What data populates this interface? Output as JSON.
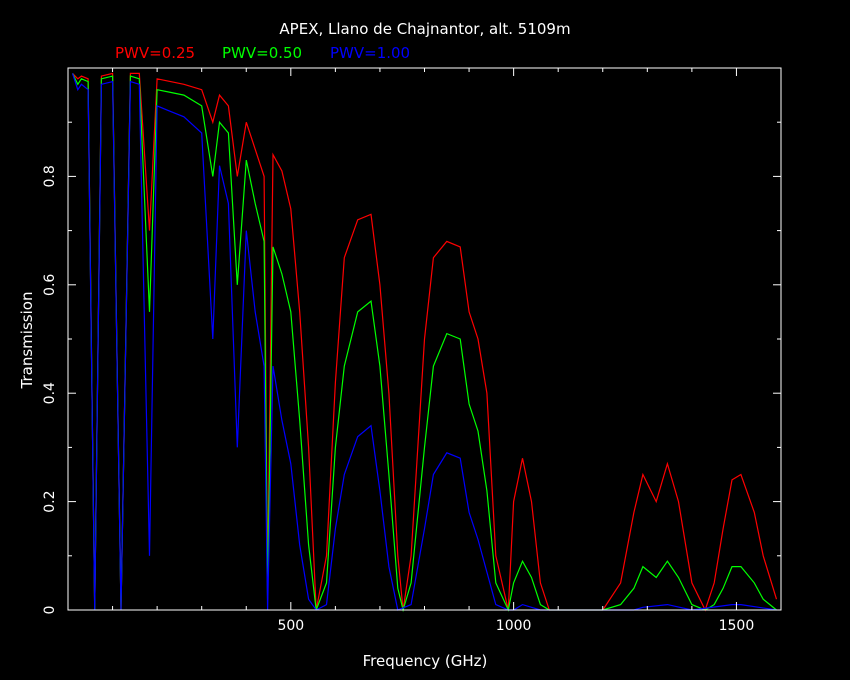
{
  "chart_data": {
    "type": "line",
    "title": "APEX, Llano de Chajnantor, alt. 5109m",
    "xlabel": "Frequency (GHz)",
    "ylabel": "Transmission",
    "xlim": [
      0,
      1600
    ],
    "ylim": [
      0,
      1
    ],
    "x_ticks": [
      {
        "value": 500,
        "label": "500"
      },
      {
        "value": 1000,
        "label": "1000"
      },
      {
        "value": 1500,
        "label": "1500"
      }
    ],
    "y_ticks": [
      {
        "value": 0,
        "label": "0"
      },
      {
        "value": 0.2,
        "label": "0.2"
      },
      {
        "value": 0.4,
        "label": "0.4"
      },
      {
        "value": 0.6,
        "label": "0.6"
      },
      {
        "value": 0.8,
        "label": "0.8"
      }
    ],
    "grid": false,
    "legend_position": "top-left",
    "series": [
      {
        "name": "PWV=0.25",
        "color": "#ff0000",
        "values": [
          [
            10,
            0.99
          ],
          [
            22,
            0.98
          ],
          [
            30,
            0.985
          ],
          [
            45,
            0.98
          ],
          [
            60,
            0.0
          ],
          [
            75,
            0.985
          ],
          [
            100,
            0.99
          ],
          [
            119,
            0.0
          ],
          [
            140,
            0.99
          ],
          [
            160,
            0.99
          ],
          [
            183,
            0.7
          ],
          [
            200,
            0.98
          ],
          [
            230,
            0.975
          ],
          [
            260,
            0.97
          ],
          [
            300,
            0.96
          ],
          [
            325,
            0.9
          ],
          [
            340,
            0.95
          ],
          [
            360,
            0.93
          ],
          [
            380,
            0.8
          ],
          [
            400,
            0.9
          ],
          [
            420,
            0.85
          ],
          [
            440,
            0.8
          ],
          [
            448,
            0.05
          ],
          [
            460,
            0.84
          ],
          [
            480,
            0.81
          ],
          [
            500,
            0.74
          ],
          [
            520,
            0.55
          ],
          [
            540,
            0.3
          ],
          [
            557,
            0.0
          ],
          [
            580,
            0.1
          ],
          [
            600,
            0.42
          ],
          [
            620,
            0.65
          ],
          [
            650,
            0.72
          ],
          [
            680,
            0.73
          ],
          [
            700,
            0.6
          ],
          [
            720,
            0.4
          ],
          [
            740,
            0.1
          ],
          [
            752,
            0.0
          ],
          [
            770,
            0.1
          ],
          [
            800,
            0.5
          ],
          [
            820,
            0.65
          ],
          [
            850,
            0.68
          ],
          [
            880,
            0.67
          ],
          [
            900,
            0.55
          ],
          [
            920,
            0.5
          ],
          [
            940,
            0.4
          ],
          [
            960,
            0.1
          ],
          [
            988,
            0.0
          ],
          [
            1000,
            0.2
          ],
          [
            1020,
            0.28
          ],
          [
            1040,
            0.2
          ],
          [
            1060,
            0.05
          ],
          [
            1080,
            0.0
          ],
          [
            1200,
            0.0
          ],
          [
            1240,
            0.05
          ],
          [
            1270,
            0.18
          ],
          [
            1290,
            0.25
          ],
          [
            1320,
            0.2
          ],
          [
            1345,
            0.27
          ],
          [
            1370,
            0.2
          ],
          [
            1400,
            0.05
          ],
          [
            1430,
            0.0
          ],
          [
            1450,
            0.05
          ],
          [
            1470,
            0.15
          ],
          [
            1490,
            0.24
          ],
          [
            1510,
            0.25
          ],
          [
            1540,
            0.18
          ],
          [
            1560,
            0.1
          ],
          [
            1590,
            0.02
          ]
        ]
      },
      {
        "name": "PWV=0.50",
        "color": "#00ff00",
        "values": [
          [
            10,
            0.99
          ],
          [
            22,
            0.97
          ],
          [
            30,
            0.98
          ],
          [
            45,
            0.975
          ],
          [
            60,
            0.0
          ],
          [
            75,
            0.98
          ],
          [
            100,
            0.985
          ],
          [
            119,
            0.0
          ],
          [
            140,
            0.985
          ],
          [
            160,
            0.98
          ],
          [
            183,
            0.55
          ],
          [
            200,
            0.96
          ],
          [
            230,
            0.955
          ],
          [
            260,
            0.95
          ],
          [
            300,
            0.93
          ],
          [
            325,
            0.8
          ],
          [
            340,
            0.9
          ],
          [
            360,
            0.88
          ],
          [
            380,
            0.6
          ],
          [
            400,
            0.83
          ],
          [
            420,
            0.75
          ],
          [
            440,
            0.68
          ],
          [
            448,
            0.02
          ],
          [
            460,
            0.67
          ],
          [
            480,
            0.62
          ],
          [
            500,
            0.55
          ],
          [
            520,
            0.35
          ],
          [
            540,
            0.12
          ],
          [
            557,
            0.0
          ],
          [
            580,
            0.05
          ],
          [
            600,
            0.3
          ],
          [
            620,
            0.45
          ],
          [
            650,
            0.55
          ],
          [
            680,
            0.57
          ],
          [
            700,
            0.45
          ],
          [
            720,
            0.25
          ],
          [
            740,
            0.04
          ],
          [
            752,
            0.0
          ],
          [
            770,
            0.05
          ],
          [
            800,
            0.3
          ],
          [
            820,
            0.45
          ],
          [
            850,
            0.51
          ],
          [
            880,
            0.5
          ],
          [
            900,
            0.38
          ],
          [
            920,
            0.33
          ],
          [
            940,
            0.22
          ],
          [
            960,
            0.05
          ],
          [
            988,
            0.0
          ],
          [
            1000,
            0.05
          ],
          [
            1020,
            0.09
          ],
          [
            1040,
            0.06
          ],
          [
            1060,
            0.01
          ],
          [
            1080,
            0.0
          ],
          [
            1200,
            0.0
          ],
          [
            1240,
            0.01
          ],
          [
            1270,
            0.04
          ],
          [
            1290,
            0.08
          ],
          [
            1320,
            0.06
          ],
          [
            1345,
            0.09
          ],
          [
            1370,
            0.06
          ],
          [
            1400,
            0.01
          ],
          [
            1430,
            0.0
          ],
          [
            1450,
            0.01
          ],
          [
            1470,
            0.04
          ],
          [
            1490,
            0.08
          ],
          [
            1510,
            0.08
          ],
          [
            1540,
            0.05
          ],
          [
            1560,
            0.02
          ],
          [
            1590,
            0.0
          ]
        ]
      },
      {
        "name": "PWV=1.00",
        "color": "#0000ff",
        "values": [
          [
            10,
            0.99
          ],
          [
            22,
            0.96
          ],
          [
            30,
            0.97
          ],
          [
            45,
            0.96
          ],
          [
            60,
            0.0
          ],
          [
            75,
            0.97
          ],
          [
            100,
            0.975
          ],
          [
            119,
            0.0
          ],
          [
            140,
            0.975
          ],
          [
            160,
            0.97
          ],
          [
            183,
            0.1
          ],
          [
            200,
            0.93
          ],
          [
            230,
            0.92
          ],
          [
            260,
            0.91
          ],
          [
            300,
            0.88
          ],
          [
            325,
            0.5
          ],
          [
            340,
            0.82
          ],
          [
            360,
            0.75
          ],
          [
            380,
            0.3
          ],
          [
            400,
            0.7
          ],
          [
            420,
            0.55
          ],
          [
            440,
            0.45
          ],
          [
            448,
            0.0
          ],
          [
            460,
            0.45
          ],
          [
            480,
            0.35
          ],
          [
            500,
            0.27
          ],
          [
            520,
            0.12
          ],
          [
            540,
            0.02
          ],
          [
            557,
            0.0
          ],
          [
            580,
            0.01
          ],
          [
            600,
            0.15
          ],
          [
            620,
            0.25
          ],
          [
            650,
            0.32
          ],
          [
            680,
            0.34
          ],
          [
            700,
            0.22
          ],
          [
            720,
            0.08
          ],
          [
            740,
            0.0
          ],
          [
            770,
            0.01
          ],
          [
            800,
            0.15
          ],
          [
            820,
            0.25
          ],
          [
            850,
            0.29
          ],
          [
            880,
            0.28
          ],
          [
            900,
            0.18
          ],
          [
            920,
            0.13
          ],
          [
            940,
            0.07
          ],
          [
            960,
            0.01
          ],
          [
            988,
            0.0
          ],
          [
            1000,
            0.0
          ],
          [
            1020,
            0.01
          ],
          [
            1040,
            0.005
          ],
          [
            1060,
            0.0
          ],
          [
            1200,
            0.0
          ],
          [
            1270,
            0.0
          ],
          [
            1290,
            0.005
          ],
          [
            1345,
            0.01
          ],
          [
            1400,
            0.0
          ],
          [
            1490,
            0.01
          ],
          [
            1510,
            0.01
          ],
          [
            1590,
            0.0
          ]
        ]
      }
    ]
  }
}
